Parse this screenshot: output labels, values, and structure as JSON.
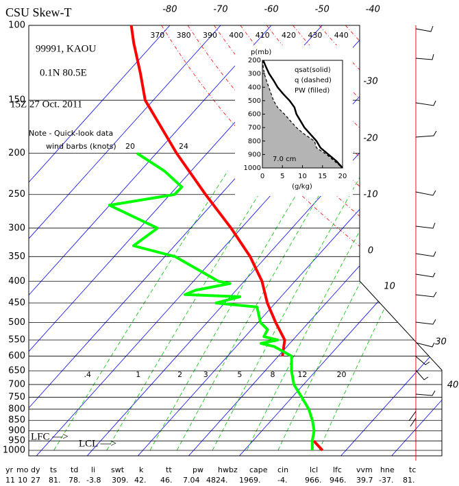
{
  "chart_data": [
    {
      "type": "skewt",
      "title": "CSU Skew-T",
      "station": "99991, KAOU",
      "location": "0.1N  80.5E",
      "time": "15Z 27 Oct. 2011",
      "note": [
        "Note - Quick-look data",
        "wind barbs (knots)"
      ],
      "markers": [
        "LFC —>",
        "LCL —>"
      ],
      "ylim": [
        100,
        1000
      ],
      "log_y": true,
      "yticks": [
        100,
        150,
        200,
        250,
        300,
        350,
        400,
        450,
        500,
        550,
        600,
        650,
        700,
        750,
        800,
        850,
        900,
        950,
        1000
      ],
      "xlim": [
        -107.8,
        -42.6
      ],
      "isotherms": [
        -80,
        -70,
        -60,
        -50,
        -40,
        -30,
        -20,
        -10,
        0,
        10,
        30,
        40
      ],
      "isotherm_color": "#0000ff",
      "dry_adiabats": [
        370,
        380,
        390,
        400,
        410,
        420,
        430,
        440
      ],
      "dry_adiabat_color": "#ff0000",
      "mixing_ratios": [
        {
          "value": 0.4,
          "label": ".4"
        },
        1,
        2,
        3,
        5,
        8,
        12,
        20
      ],
      "mixing_ratio_color": "#00c000",
      "mixing_ratio_label_color": "#a0281e",
      "moist_adiabat_labels": [
        20,
        24
      ],
      "series": [
        {
          "color": "#ff0000",
          "pressure": [
            100,
            110,
            130,
            150,
            200,
            250,
            300,
            350,
            400,
            450,
            500,
            550,
            600,
            650,
            700,
            750,
            800,
            850,
            900,
            950,
            1000
          ],
          "values": [
            -87.6,
            -84.0,
            -77.2,
            -71.6,
            -56.0,
            -43.0,
            -32.0,
            -23.2,
            -16.5,
            -11.6,
            -6.5,
            -1.6,
            0.8,
            null,
            null,
            null,
            null,
            null,
            null,
            22.0,
            25.4
          ]
        },
        {
          "color": "#00ff00",
          "pressure": [
            200,
            220,
            240,
            250,
            265,
            300,
            330,
            350,
            400,
            405,
            420,
            430,
            435,
            450,
            460,
            500,
            520,
            540,
            550,
            560,
            570,
            600,
            650,
            700,
            750,
            800,
            850,
            900,
            950,
            1000
          ],
          "values": [
            -63.8,
            -55.3,
            -49.0,
            -49.1,
            -60.0,
            -46.5,
            -48.1,
            -38.0,
            -25.1,
            -22.4,
            -28.0,
            -29.3,
            -18.1,
            -21.7,
            -12.9,
            -9.5,
            -6.8,
            -6.3,
            -3.0,
            -5.7,
            -2.5,
            2.6,
            5.2,
            8.1,
            11.9,
            15.4,
            18.1,
            20.3,
            21.7,
            23.4
          ]
        }
      ]
    },
    {
      "type": "profile",
      "ylabel": "p(mb)",
      "xlabel": "(g/kg)",
      "ylim": [
        200,
        1000
      ],
      "yticks": [
        200,
        300,
        400,
        500,
        600,
        700,
        800,
        900,
        1000
      ],
      "xlim": [
        0,
        20
      ],
      "xticks": [
        0,
        5,
        10,
        15,
        20
      ],
      "pressure": [
        200,
        250,
        300,
        350,
        400,
        450,
        500,
        550,
        600,
        650,
        700,
        750,
        800,
        850,
        900,
        950,
        1000
      ],
      "series": [
        {
          "name": "qsat(solid)",
          "color": "#000000",
          "style": "solid",
          "values": [
            0.2,
            0.9,
            1.7,
            2.8,
            3.8,
            5.2,
            6.8,
            8.0,
            8.5,
            9.5,
            10.5,
            12.0,
            13.5,
            14.5,
            16.5,
            18.5,
            20.0
          ]
        },
        {
          "name": "q (dashed)",
          "color": "#000000",
          "style": "dashed",
          "values": [
            0.1,
            0.2,
            0.5,
            1.0,
            1.6,
            2.2,
            2.8,
            3.8,
            5.5,
            7.0,
            8.5,
            10.5,
            13.0,
            13.5,
            16.0,
            18.0,
            20.0
          ]
        }
      ],
      "fill_label": "PW (filled)",
      "fill_color": "#b4b4b4",
      "pw": "7.0 cm"
    }
  ],
  "indices": {
    "headers": [
      "yr",
      "mo",
      "dy",
      "ts",
      "td",
      "li",
      "swt",
      "k",
      "tt",
      "pw",
      "hwbz",
      "cape",
      "cin",
      "lcl",
      "lfc",
      "vvm",
      "hne",
      "tc"
    ],
    "values": [
      "11",
      "10",
      "27",
      "81.",
      "78.",
      "-3.8",
      "309.",
      "42.",
      "46.",
      "7.04",
      "4824.",
      "1969.",
      "-4.",
      "966.",
      "946.",
      "39.7",
      "-37.",
      "81."
    ]
  }
}
